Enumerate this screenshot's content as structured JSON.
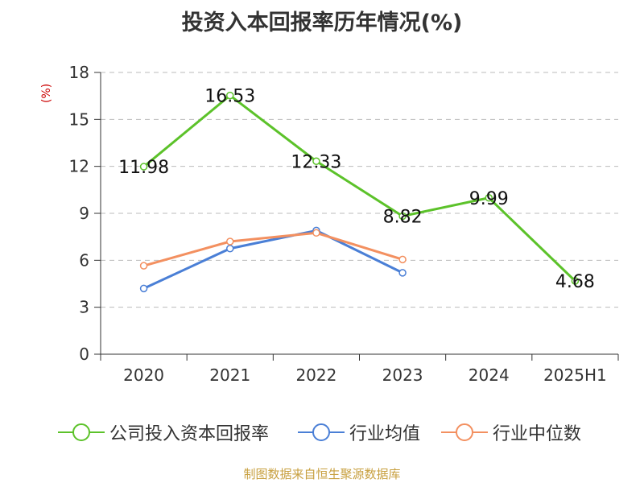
{
  "chart_data": {
    "type": "line",
    "title": "投资入本回报率历年情况(%)",
    "y_unit_label": "(%)",
    "categories": [
      "2020",
      "2021",
      "2022",
      "2023",
      "2024",
      "2025H1"
    ],
    "ylim": [
      0,
      18
    ],
    "yticks": [
      0,
      3,
      6,
      9,
      12,
      15,
      18
    ],
    "grid": "horizontal dashed",
    "legend_position": "bottom",
    "series": [
      {
        "name": "公司投入资本回报率",
        "color": "#5cc22a",
        "values": [
          11.98,
          16.53,
          12.33,
          8.82,
          9.99,
          4.68
        ],
        "labels": [
          "11.98",
          "16.53",
          "12.33",
          "8.82",
          "9.99",
          "4.68"
        ]
      },
      {
        "name": "行业均值",
        "color": "#4a7fd6",
        "values": [
          4.2,
          6.75,
          7.9,
          5.2,
          null,
          null
        ]
      },
      {
        "name": "行业中位数",
        "color": "#f39060",
        "values": [
          5.65,
          7.2,
          7.75,
          6.05,
          null,
          null
        ]
      }
    ]
  },
  "source": "制图数据来自恒生聚源数据库"
}
